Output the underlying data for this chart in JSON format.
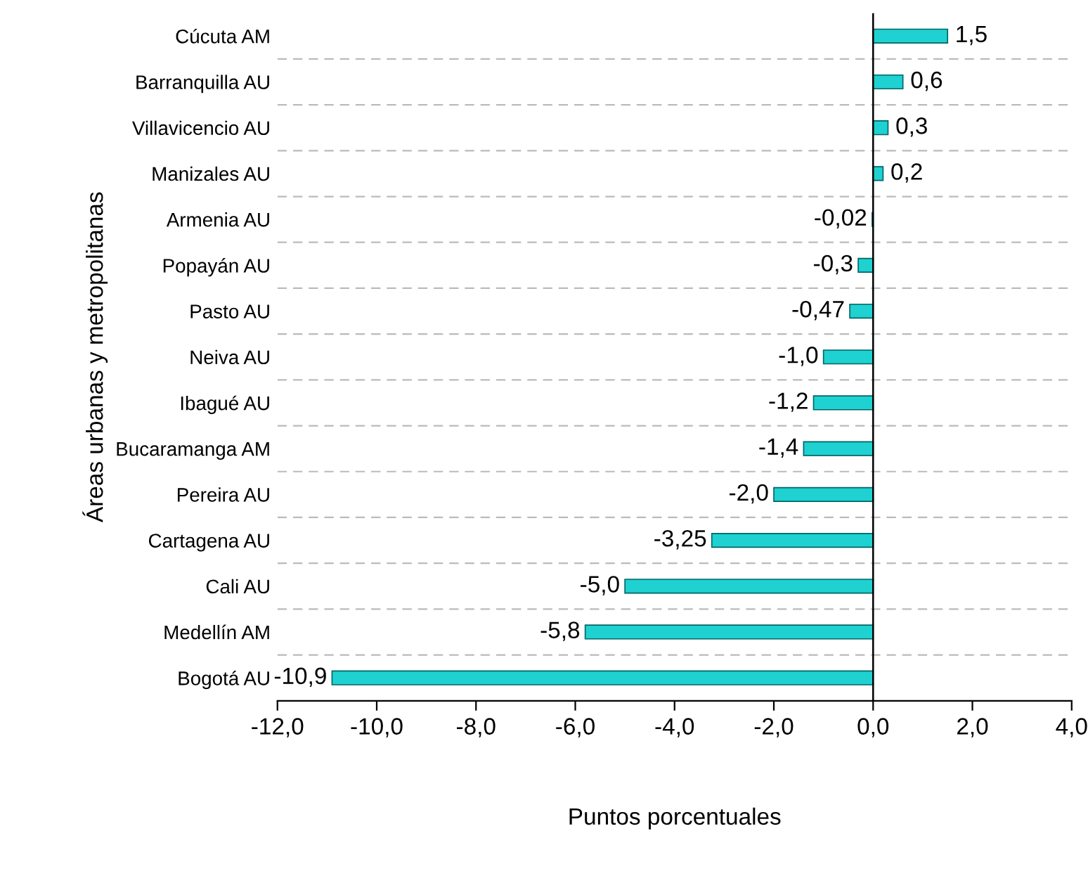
{
  "chart_data": {
    "type": "bar",
    "orientation": "horizontal",
    "ylabel": "Áreas urbanas y metropolitanas",
    "xlabel": "Puntos porcentuales",
    "categories": [
      "Cúcuta AM",
      "Barranquilla AU",
      "Villavicencio AU",
      "Manizales AU",
      "Armenia AU",
      "Popayán AU",
      "Pasto AU",
      "Neiva AU",
      "Ibagué AU",
      "Bucaramanga AM",
      "Pereira AU",
      "Cartagena AU",
      "Cali AU",
      "Medellín AM",
      "Bogotá AU"
    ],
    "values": [
      1.5,
      0.6,
      0.3,
      0.2,
      -0.02,
      -0.3,
      -0.47,
      -1.0,
      -1.2,
      -1.4,
      -2.0,
      -3.25,
      -5.0,
      -5.8,
      -10.9
    ],
    "value_labels": [
      "1,5",
      "0,6",
      "0,3",
      "0,2",
      "-0,02",
      "-0,3",
      "-0,47",
      "-1,0",
      "-1,2",
      "-1,4",
      "-2,0",
      "-3,25",
      "-5,0",
      "-5,8",
      "-10,9"
    ],
    "color": "#1fd1d1",
    "xlim": [
      -12,
      4
    ],
    "xticks": [
      {
        "value": -12,
        "label": "-12,0"
      },
      {
        "value": -10,
        "label": "-10,0"
      },
      {
        "value": -8,
        "label": "-8,0"
      },
      {
        "value": -6,
        "label": "-6,0"
      },
      {
        "value": -4,
        "label": "-4,0"
      },
      {
        "value": -2,
        "label": "-2,0"
      },
      {
        "value": 0,
        "label": "0,0"
      },
      {
        "value": 2,
        "label": "2,0"
      },
      {
        "value": 4,
        "label": "4,0"
      }
    ],
    "grid": "y"
  }
}
